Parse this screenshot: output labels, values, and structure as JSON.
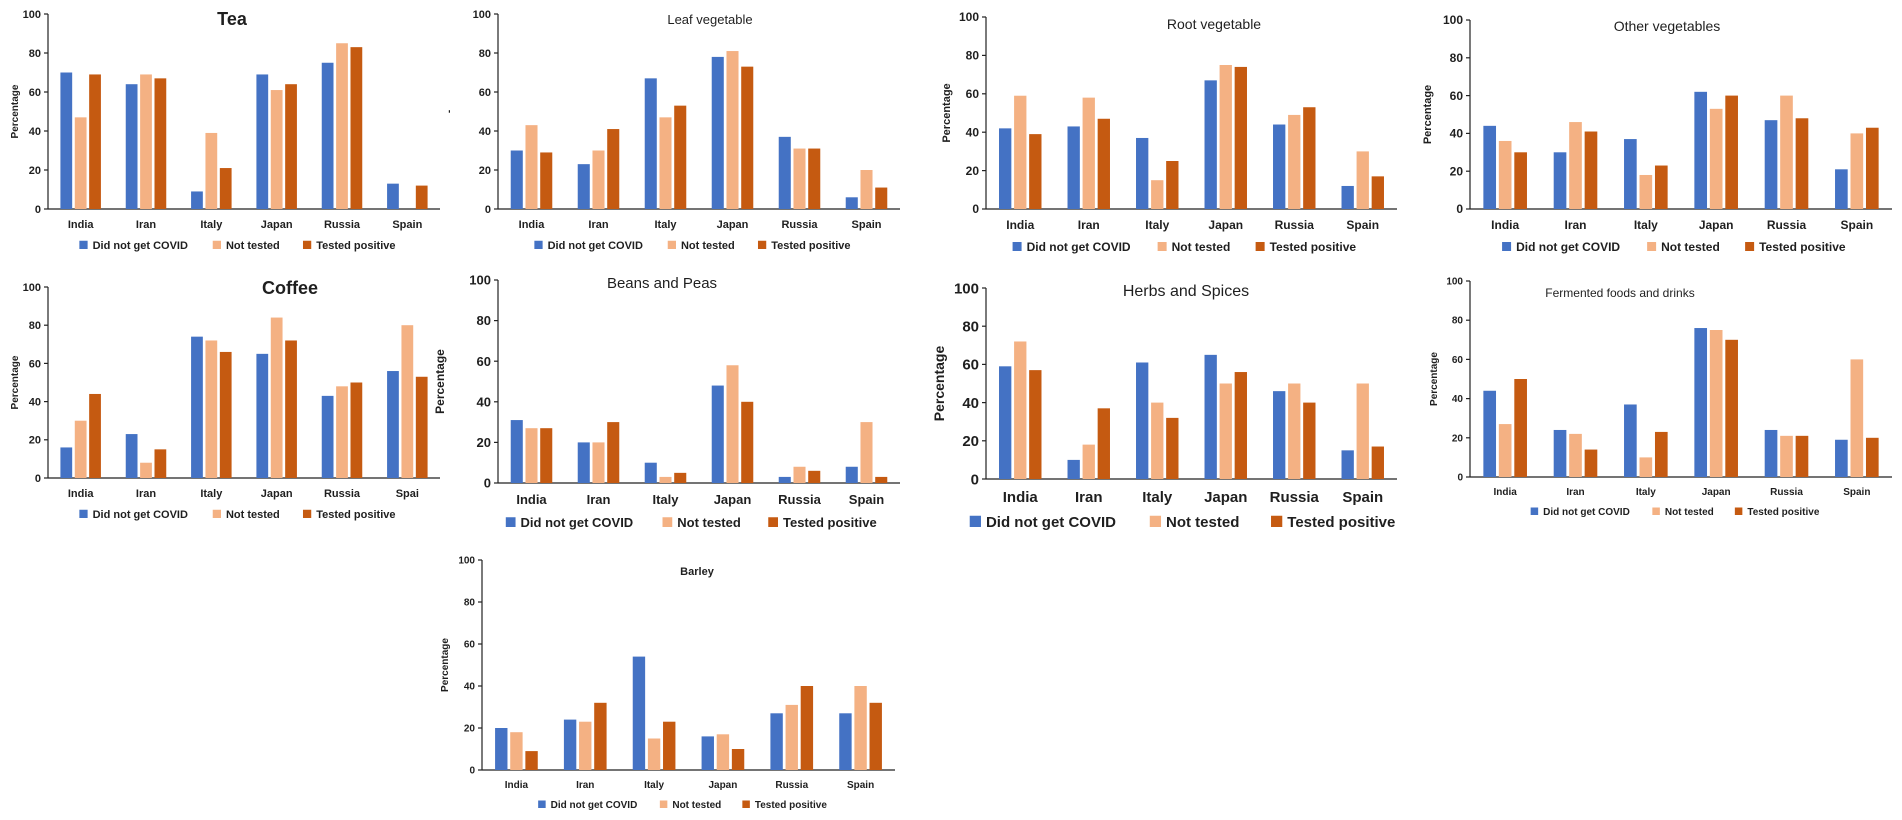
{
  "colors": {
    "did_not_get_covid": "#4472C4",
    "not_tested": "#F4B183",
    "tested_positive": "#C55A11"
  },
  "series_names": [
    "Did not get COVID",
    "Not tested",
    "Tested positive"
  ],
  "chart_data": [
    {
      "type": "bar",
      "title": "Tea",
      "xlabel": "",
      "ylabel": "Percentage",
      "ylim": [
        0,
        100
      ],
      "categories": [
        "India",
        "Iran",
        "Italy",
        "Japan",
        "Russia",
        "Spain"
      ],
      "series": [
        {
          "name": "Did not get COVID",
          "values": [
            70,
            64,
            9,
            69,
            75,
            13
          ]
        },
        {
          "name": "Not tested",
          "values": [
            47,
            69,
            39,
            61,
            85,
            0
          ]
        },
        {
          "name": "Tested positive",
          "values": [
            69,
            67,
            21,
            64,
            83,
            12
          ]
        }
      ],
      "legend": "bottom"
    },
    {
      "type": "bar",
      "title": "Leaf vegetable",
      "xlabel": "",
      "ylabel": "-",
      "ylim": [
        0,
        100
      ],
      "categories": [
        "India",
        "Iran",
        "Italy",
        "Japan",
        "Russia",
        "Spain"
      ],
      "series": [
        {
          "name": "Did not get COVID",
          "values": [
            30,
            23,
            67,
            78,
            37,
            6
          ]
        },
        {
          "name": "Not tested",
          "values": [
            43,
            30,
            47,
            81,
            31,
            20
          ]
        },
        {
          "name": "Tested positive",
          "values": [
            29,
            41,
            53,
            73,
            31,
            11
          ]
        }
      ],
      "legend": "bottom"
    },
    {
      "type": "bar",
      "title": "Root vegetable",
      "xlabel": "",
      "ylabel": "Percentage",
      "ylim": [
        0,
        100
      ],
      "categories": [
        "India",
        "Iran",
        "Italy",
        "Japan",
        "Russia",
        "Spain"
      ],
      "series": [
        {
          "name": "Did not get COVID",
          "values": [
            42,
            43,
            37,
            67,
            44,
            12
          ]
        },
        {
          "name": "Not tested",
          "values": [
            59,
            58,
            15,
            75,
            49,
            30
          ]
        },
        {
          "name": "Tested positive",
          "values": [
            39,
            47,
            25,
            74,
            53,
            17
          ]
        }
      ],
      "legend": "bottom"
    },
    {
      "type": "bar",
      "title": "Other vegetables",
      "xlabel": "",
      "ylabel": "Percentage",
      "ylim": [
        0,
        100
      ],
      "categories": [
        "India",
        "Iran",
        "Italy",
        "Japan",
        "Russia",
        "Spain"
      ],
      "series": [
        {
          "name": "Did not get COVID",
          "values": [
            44,
            30,
            37,
            62,
            47,
            21
          ]
        },
        {
          "name": "Not tested",
          "values": [
            36,
            46,
            18,
            53,
            60,
            40
          ]
        },
        {
          "name": "Tested positive",
          "values": [
            30,
            41,
            23,
            60,
            48,
            43
          ]
        }
      ],
      "legend": "bottom"
    },
    {
      "type": "bar",
      "title": "Coffee",
      "xlabel": "",
      "ylabel": "Percentage",
      "ylim": [
        0,
        100
      ],
      "categories": [
        "India",
        "Iran",
        "Italy",
        "Japan",
        "Russia",
        "Spai"
      ],
      "series": [
        {
          "name": "Did not get COVID",
          "values": [
            16,
            23,
            74,
            65,
            43,
            56
          ]
        },
        {
          "name": "Not tested",
          "values": [
            30,
            8,
            72,
            84,
            48,
            80
          ]
        },
        {
          "name": "Tested positive",
          "values": [
            44,
            15,
            66,
            72,
            50,
            53
          ]
        }
      ],
      "legend": "bottom"
    },
    {
      "type": "bar",
      "title": "Beans and Peas",
      "xlabel": "",
      "ylabel": "Percentage",
      "ylim": [
        0,
        100
      ],
      "categories": [
        "India",
        "Iran",
        "Italy",
        "Japan",
        "Russia",
        "Spain"
      ],
      "series": [
        {
          "name": "Did not get COVID",
          "values": [
            31,
            20,
            10,
            48,
            3,
            8
          ]
        },
        {
          "name": "Not tested",
          "values": [
            27,
            20,
            3,
            58,
            8,
            30
          ]
        },
        {
          "name": "Tested positive",
          "values": [
            27,
            30,
            5,
            40,
            6,
            3
          ]
        }
      ],
      "legend": "bottom"
    },
    {
      "type": "bar",
      "title": "Herbs and Spices",
      "xlabel": "",
      "ylabel": "Percentage",
      "ylim": [
        0,
        100
      ],
      "categories": [
        "India",
        "Iran",
        "Italy",
        "Japan",
        "Russia",
        "Spain"
      ],
      "series": [
        {
          "name": "Did not get COVID",
          "values": [
            59,
            10,
            61,
            65,
            46,
            15
          ]
        },
        {
          "name": "Not tested",
          "values": [
            72,
            18,
            40,
            50,
            50,
            50
          ]
        },
        {
          "name": "Tested positive",
          "values": [
            57,
            37,
            32,
            56,
            40,
            17
          ]
        }
      ],
      "legend": "bottom"
    },
    {
      "type": "bar",
      "title": "Fermented foods and drinks",
      "xlabel": "",
      "ylabel": "Percentage",
      "ylim": [
        0,
        100
      ],
      "categories": [
        "India",
        "Iran",
        "Italy",
        "Japan",
        "Russia",
        "Spain"
      ],
      "series": [
        {
          "name": "Did not get COVID",
          "values": [
            44,
            24,
            37,
            76,
            24,
            19
          ]
        },
        {
          "name": "Not tested",
          "values": [
            27,
            22,
            10,
            75,
            21,
            60
          ]
        },
        {
          "name": "Tested positive",
          "values": [
            50,
            14,
            23,
            70,
            21,
            20
          ]
        }
      ],
      "legend": "bottom"
    },
    {
      "type": "bar",
      "title": "Barley",
      "xlabel": "",
      "ylabel": "Percentage",
      "ylim": [
        0,
        100
      ],
      "categories": [
        "India",
        "Iran",
        "Italy",
        "Japan",
        "Russia",
        "Spain"
      ],
      "series": [
        {
          "name": "Did not get COVID",
          "values": [
            20,
            24,
            54,
            16,
            27,
            27
          ]
        },
        {
          "name": "Not tested",
          "values": [
            18,
            23,
            15,
            17,
            31,
            40
          ]
        },
        {
          "name": "Tested positive",
          "values": [
            9,
            32,
            23,
            10,
            40,
            32
          ]
        }
      ],
      "legend": "bottom"
    }
  ]
}
